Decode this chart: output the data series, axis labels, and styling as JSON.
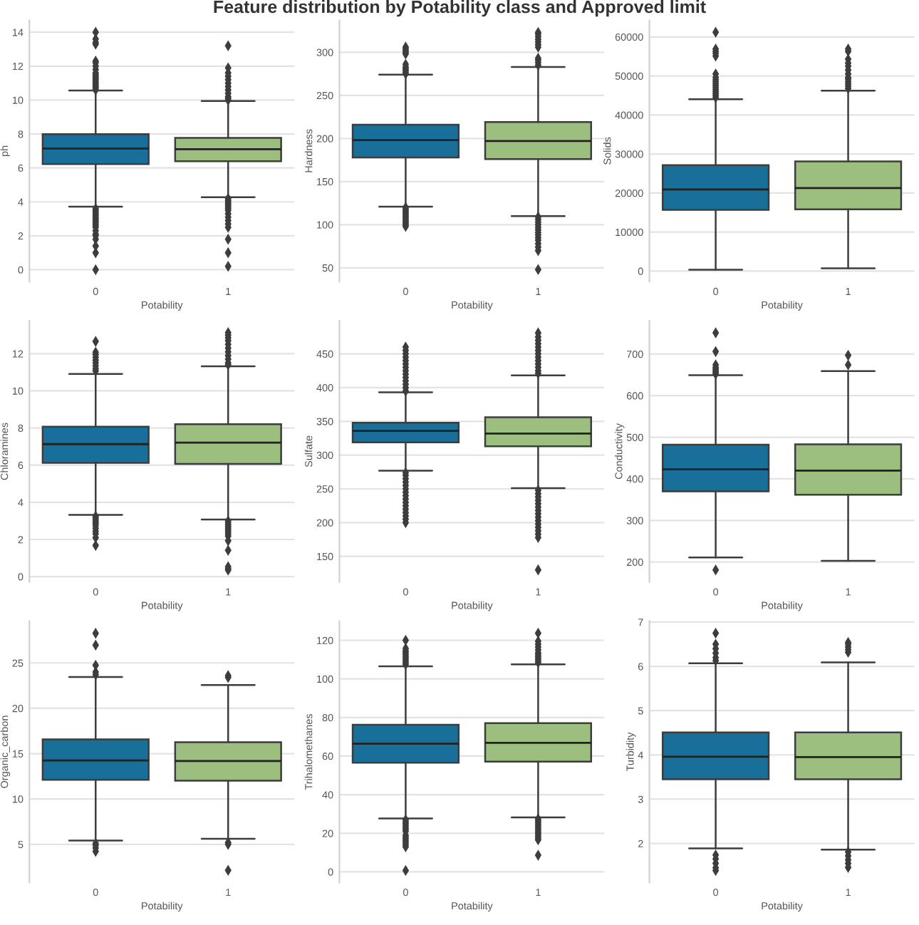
{
  "chart_data": [
    {
      "type": "box",
      "title": "Feature distribution by Potability class and Approved limit",
      "xlabel": "Potability",
      "ylabel": "ph",
      "categories": [
        "0",
        "1"
      ],
      "colors": [
        "#176f9a",
        "#9cbf7f"
      ],
      "grid": "y",
      "ylim": [
        -0.7,
        14.7
      ],
      "yticks": [
        0,
        2,
        4,
        6,
        8,
        10,
        12,
        14
      ],
      "boxes": [
        {
          "low": 3.72,
          "q1": 6.23,
          "median": 7.15,
          "q3": 7.99,
          "high": 10.56,
          "outliers": [
            10.6,
            10.7,
            10.8,
            10.9,
            11.0,
            11.1,
            11.2,
            11.3,
            11.4,
            11.5,
            11.6,
            11.8,
            12.0,
            12.2,
            12.3,
            13.3,
            13.4,
            13.6,
            14.0,
            3.6,
            3.5,
            3.4,
            3.3,
            3.2,
            3.1,
            3.0,
            2.9,
            2.8,
            2.7,
            2.6,
            2.5,
            2.3,
            2.1,
            2.0,
            1.8,
            1.4,
            1.0,
            0.0
          ]
        },
        {
          "low": 4.27,
          "q1": 6.4,
          "median": 7.1,
          "q3": 7.77,
          "high": 9.94,
          "outliers": [
            10.0,
            10.1,
            10.2,
            10.4,
            10.6,
            10.8,
            11.0,
            11.2,
            11.4,
            11.6,
            11.9,
            13.2,
            4.2,
            4.1,
            4.0,
            3.9,
            3.8,
            3.7,
            3.6,
            3.5,
            3.3,
            3.1,
            2.9,
            2.7,
            2.5,
            1.8,
            1.0,
            0.2
          ]
        }
      ]
    },
    {
      "type": "box",
      "xlabel": "Potability",
      "ylabel": "Hardness",
      "categories": [
        "0",
        "1"
      ],
      "colors": [
        "#176f9a",
        "#9cbf7f"
      ],
      "grid": "y",
      "ylim": [
        34,
        337
      ],
      "yticks": [
        50,
        100,
        150,
        200,
        250,
        300
      ],
      "boxes": [
        {
          "low": 121,
          "q1": 178,
          "median": 198,
          "q3": 216,
          "high": 274,
          "outliers": [
            275,
            277,
            279,
            281,
            283,
            286,
            298,
            300,
            302,
            304,
            306,
            120,
            118,
            116,
            114,
            112,
            110,
            108,
            106,
            104,
            102,
            100,
            98
          ]
        },
        {
          "low": 110,
          "q1": 176,
          "median": 197,
          "q3": 219,
          "high": 283,
          "outliers": [
            285,
            288,
            291,
            293,
            306,
            309,
            312,
            315,
            318,
            321,
            323,
            109,
            106,
            103,
            100,
            97,
            94,
            91,
            88,
            85,
            82,
            78,
            74,
            70,
            48
          ]
        }
      ]
    },
    {
      "type": "box",
      "xlabel": "Potability",
      "ylabel": "Solids",
      "categories": [
        "0",
        "1"
      ],
      "colors": [
        "#176f9a",
        "#9cbf7f"
      ],
      "grid": "y",
      "ylim": [
        -2680,
        64240
      ],
      "yticks": [
        0,
        10000,
        20000,
        30000,
        40000,
        50000,
        60000
      ],
      "boxes": [
        {
          "low": 360,
          "q1": 15690,
          "median": 20920,
          "q3": 27130,
          "high": 44040,
          "outliers": [
            44500,
            45000,
            45500,
            46000,
            46500,
            47000,
            47500,
            48000,
            48500,
            49000,
            49600,
            50500,
            55100,
            55800,
            56300,
            56900,
            61200
          ]
        },
        {
          "low": 730,
          "q1": 15810,
          "median": 21290,
          "q3": 28100,
          "high": 46230,
          "outliers": [
            46800,
            47400,
            48000,
            48600,
            49200,
            49600,
            50500,
            51500,
            52500,
            53300,
            54300,
            56300,
            56900
          ]
        }
      ]
    },
    {
      "type": "box",
      "xlabel": "Potability",
      "ylabel": "Chloramines",
      "categories": [
        "0",
        "1"
      ],
      "colors": [
        "#176f9a",
        "#9cbf7f"
      ],
      "grid": "y",
      "ylim": [
        -0.29,
        13.77
      ],
      "yticks": [
        0,
        2,
        4,
        6,
        8,
        10,
        12
      ],
      "boxes": [
        {
          "low": 3.32,
          "q1": 6.12,
          "median": 7.13,
          "q3": 8.07,
          "high": 10.91,
          "outliers": [
            11.07,
            11.2,
            11.35,
            11.5,
            11.65,
            11.8,
            11.95,
            12.08,
            12.66,
            3.25,
            3.15,
            3.05,
            2.95,
            2.85,
            2.75,
            2.6,
            2.45,
            2.31,
            2.1,
            1.68
          ]
        },
        {
          "low": 3.07,
          "q1": 6.07,
          "median": 7.21,
          "q3": 8.2,
          "high": 11.32,
          "outliers": [
            11.4,
            11.5,
            11.7,
            11.9,
            12.1,
            12.3,
            12.5,
            12.7,
            12.85,
            13.0,
            13.13,
            3.0,
            2.9,
            2.8,
            2.7,
            2.6,
            2.5,
            2.4,
            2.3,
            2.18,
            1.93,
            1.42,
            0.53,
            0.43,
            0.35
          ]
        }
      ]
    },
    {
      "type": "box",
      "xlabel": "Potability",
      "ylabel": "Sulfate",
      "categories": [
        "0",
        "1"
      ],
      "colors": [
        "#176f9a",
        "#9cbf7f"
      ],
      "grid": "y",
      "ylim": [
        112,
        499
      ],
      "yticks": [
        150,
        200,
        250,
        300,
        350,
        400,
        450
      ],
      "boxes": [
        {
          "low": 277,
          "q1": 319,
          "median": 336,
          "q3": 348,
          "high": 393,
          "outliers": [
            395,
            400,
            405,
            410,
            415,
            420,
            425,
            430,
            435,
            440,
            445,
            450,
            455,
            460,
            274,
            270,
            265,
            260,
            255,
            250,
            245,
            240,
            235,
            230,
            225,
            220,
            215,
            210,
            205,
            200
          ]
        },
        {
          "low": 251,
          "q1": 313,
          "median": 332,
          "q3": 356,
          "high": 418,
          "outliers": [
            421,
            425,
            430,
            435,
            440,
            445,
            450,
            455,
            460,
            465,
            470,
            475,
            481,
            248,
            243,
            238,
            233,
            228,
            223,
            218,
            213,
            208,
            203,
            198,
            193,
            188,
            183,
            178,
            130
          ]
        }
      ]
    },
    {
      "type": "box",
      "xlabel": "Potability",
      "ylabel": "Conductivity",
      "categories": [
        "0",
        "1"
      ],
      "colors": [
        "#176f9a",
        "#9cbf7f"
      ],
      "grid": "y",
      "ylim": [
        152,
        780
      ],
      "yticks": [
        200,
        300,
        400,
        500,
        600,
        700
      ],
      "boxes": [
        {
          "low": 211,
          "q1": 370,
          "median": 423,
          "q3": 482,
          "high": 649,
          "outliers": [
            652,
            656,
            660,
            664,
            668,
            674,
            706,
            751,
            181
          ]
        },
        {
          "low": 203,
          "q1": 362,
          "median": 420,
          "q3": 483,
          "high": 659,
          "outliers": [
            674,
            697
          ]
        }
      ]
    },
    {
      "type": "box",
      "xlabel": "Potability",
      "ylabel": "Organic_carbon",
      "categories": [
        "0",
        "1"
      ],
      "colors": [
        "#176f9a",
        "#9cbf7f"
      ],
      "grid": "y",
      "ylim": [
        0.8,
        29.6
      ],
      "yticks": [
        5,
        10,
        15,
        20,
        25
      ],
      "boxes": [
        {
          "low": 5.42,
          "q1": 12.12,
          "median": 14.25,
          "q3": 16.58,
          "high": 23.44,
          "outliers": [
            23.7,
            24.0,
            24.74,
            26.97,
            28.27,
            5.1,
            4.9,
            4.6,
            4.22
          ]
        },
        {
          "low": 5.62,
          "q1": 12.01,
          "median": 14.19,
          "q3": 16.27,
          "high": 22.56,
          "outliers": [
            23.4,
            23.6,
            5.2,
            5.0,
            2.14
          ]
        }
      ]
    },
    {
      "type": "box",
      "xlabel": "Potability",
      "ylabel": "Trihalomethanes",
      "categories": [
        "0",
        "1"
      ],
      "colors": [
        "#176f9a",
        "#9cbf7f"
      ],
      "grid": "y",
      "ylim": [
        -5.5,
        129.9
      ],
      "yticks": [
        0,
        20,
        40,
        60,
        80,
        100,
        120
      ],
      "boxes": [
        {
          "low": 27.7,
          "q1": 56.6,
          "median": 66.4,
          "q3": 76.2,
          "high": 106.5,
          "outliers": [
            107.5,
            108.5,
            109.5,
            110.5,
            111.5,
            112.5,
            113.5,
            114.5,
            115.8,
            120.0,
            27.0,
            26.0,
            25.0,
            24.0,
            23.0,
            22.0,
            21.0,
            19.0,
            18.0,
            17.0,
            16.0,
            15.0,
            14.0,
            13.0,
            0.7
          ]
        },
        {
          "low": 28.2,
          "q1": 57.1,
          "median": 66.9,
          "q3": 77.1,
          "high": 107.5,
          "outliers": [
            108.5,
            109.5,
            110.5,
            111.5,
            112.5,
            113.5,
            115.0,
            116.5,
            118.0,
            119.5,
            123.7,
            27.5,
            26.5,
            25.5,
            24.5,
            23.5,
            22.5,
            21.5,
            20.5,
            19.5,
            18.5,
            17.5,
            16.6,
            8.6
          ]
        }
      ]
    },
    {
      "type": "box",
      "xlabel": "Potability",
      "ylabel": "Turbidity",
      "categories": [
        "0",
        "1"
      ],
      "colors": [
        "#176f9a",
        "#9cbf7f"
      ],
      "grid": "y",
      "ylim": [
        1.12,
        7.02
      ],
      "yticks": [
        2,
        3,
        4,
        5,
        6,
        7
      ],
      "boxes": [
        {
          "low": 1.89,
          "q1": 3.45,
          "median": 3.96,
          "q3": 4.51,
          "high": 6.07,
          "outliers": [
            6.13,
            6.2,
            6.3,
            6.4,
            6.5,
            6.75,
            1.74,
            1.65,
            1.55,
            1.45,
            1.39
          ]
        },
        {
          "low": 1.86,
          "q1": 3.45,
          "median": 3.95,
          "q3": 4.51,
          "high": 6.09,
          "outliers": [
            6.32,
            6.38,
            6.44,
            6.5,
            6.54,
            1.81,
            1.72,
            1.63,
            1.55,
            1.46
          ]
        }
      ]
    }
  ]
}
